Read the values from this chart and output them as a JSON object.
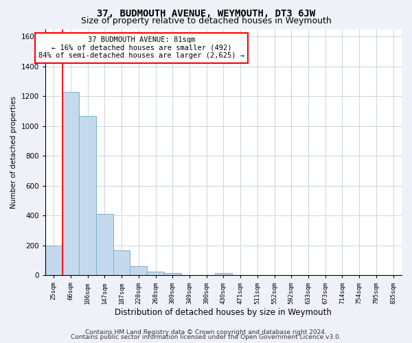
{
  "title": "37, BUDMOUTH AVENUE, WEYMOUTH, DT3 6JW",
  "subtitle": "Size of property relative to detached houses in Weymouth",
  "xlabel": "Distribution of detached houses by size in Weymouth",
  "ylabel": "Number of detached properties",
  "categories": [
    "25sqm",
    "66sqm",
    "106sqm",
    "147sqm",
    "187sqm",
    "228sqm",
    "268sqm",
    "309sqm",
    "349sqm",
    "390sqm",
    "430sqm",
    "471sqm",
    "511sqm",
    "552sqm",
    "592sqm",
    "633sqm",
    "673sqm",
    "714sqm",
    "754sqm",
    "795sqm",
    "835sqm"
  ],
  "values": [
    200,
    1230,
    1070,
    410,
    165,
    60,
    25,
    15,
    0,
    0,
    15,
    0,
    0,
    0,
    0,
    0,
    0,
    0,
    0,
    0,
    0
  ],
  "bar_color": "#c5d9ee",
  "bar_edge_color": "#7aaecc",
  "red_line_x": 1,
  "ylim": [
    0,
    1650
  ],
  "yticks": [
    0,
    200,
    400,
    600,
    800,
    1000,
    1200,
    1400,
    1600
  ],
  "annotation_line1": "37 BUDMOUTH AVENUE: 81sqm",
  "annotation_line2": "← 16% of detached houses are smaller (492)",
  "annotation_line3": "84% of semi-detached houses are larger (2,625) →",
  "footnote1": "Contains HM Land Registry data © Crown copyright and database right 2024.",
  "footnote2": "Contains public sector information licensed under the Open Government Licence v3.0.",
  "background_color": "#eef2f8",
  "plot_bg_color": "#ffffff",
  "grid_color": "#c8d4e4",
  "title_fontsize": 10,
  "subtitle_fontsize": 9,
  "xlabel_fontsize": 8.5,
  "ylabel_fontsize": 7.5,
  "footnote_fontsize": 6.5
}
